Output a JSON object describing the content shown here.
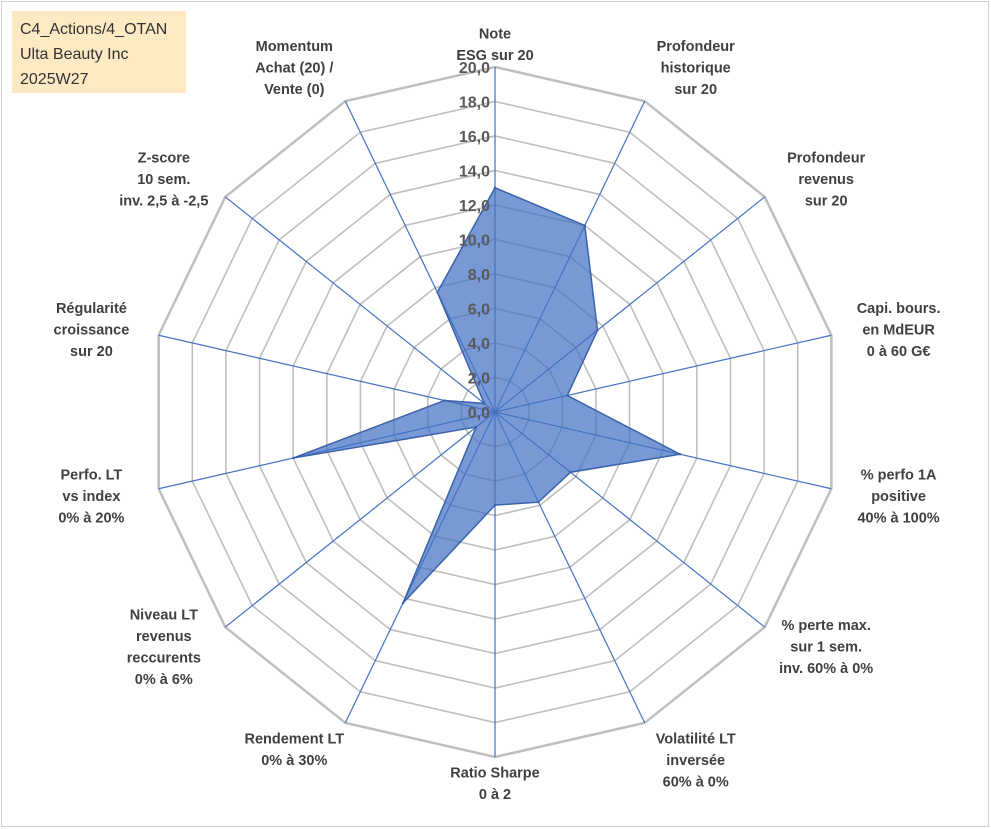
{
  "info_box": {
    "line1": "C4_Actions/4_OTAN",
    "line2": "Ulta Beauty Inc",
    "line3": "2025W27"
  },
  "chart_data": {
    "type": "radar",
    "r_range": [
      0,
      20
    ],
    "r_ticks": [
      "0,0",
      "2,0",
      "4,0",
      "6,0",
      "8,0",
      "10,0",
      "12,0",
      "14,0",
      "16,0",
      "18,0",
      "20,0"
    ],
    "grid": true,
    "axes": [
      {
        "label": [
          "Note",
          "ESG sur 20"
        ],
        "value": 13.0
      },
      {
        "label": [
          "Profondeur",
          "historique",
          "sur 20"
        ],
        "value": 12.0
      },
      {
        "label": [
          "Profondeur",
          "revenus",
          "sur 20"
        ],
        "value": 7.6
      },
      {
        "label": [
          "Capi. bours.",
          "en MdEUR",
          "0 à 60 G€"
        ],
        "value": 4.3
      },
      {
        "label": [
          "% perfo 1A",
          "positive",
          "40% à 100%"
        ],
        "value": 11.0
      },
      {
        "label": [
          "% perte max.",
          "sur 1 sem.",
          "inv. 60% à 0%"
        ],
        "value": 5.6
      },
      {
        "label": [
          "Volatilité LT",
          "inversée",
          "60% à 0%"
        ],
        "value": 5.8
      },
      {
        "label": [
          "Ratio Sharpe",
          "0 à 2"
        ],
        "value": 5.4
      },
      {
        "label": [
          "Rendement LT",
          "0% à 30%"
        ],
        "value": 12.3
      },
      {
        "label": [
          "Niveau LT",
          "revenus",
          "reccurents",
          "0% à 6%"
        ],
        "value": 1.4
      },
      {
        "label": [
          "Perfo. LT",
          "vs index",
          "0% à 20%"
        ],
        "value": 12.0
      },
      {
        "label": [
          "Régularité",
          "croissance",
          "sur 20"
        ],
        "value": 3.0
      },
      {
        "label": [
          "Z-score",
          "10 sem.",
          "inv. 2,5 à -2,5"
        ],
        "value": 0.8
      },
      {
        "label": [
          "Momentum",
          "Achat (20) /",
          "Vente (0)"
        ],
        "value": 7.7
      }
    ],
    "colors": {
      "grid": "#bfbfbf",
      "spoke": "#4472c4",
      "fill": "#4472c4",
      "fill_opacity": 0.72,
      "outline": "#3a62aa"
    }
  }
}
